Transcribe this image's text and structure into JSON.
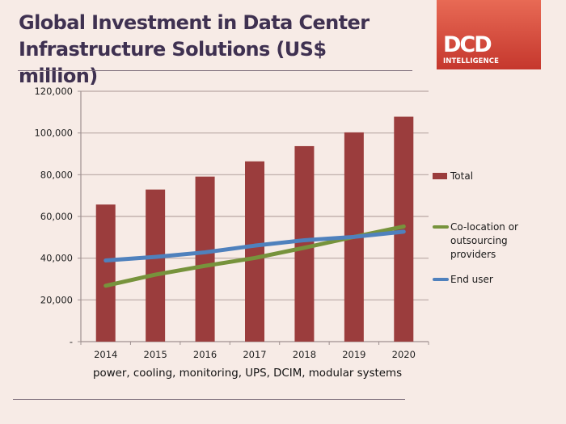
{
  "header": {
    "title_line1": "Global Investment in Data Center",
    "title_line2": "Infrastructure Solutions (US$ million)"
  },
  "logo": {
    "main": "DCD",
    "sub": "INTELLIGENCE",
    "color": "#d9483b"
  },
  "chart_data": {
    "type": "bar",
    "title": "Global Investment in Data Center Infrastructure Solutions (US$ million)",
    "xlabel": "power, cooling, monitoring, UPS, DCIM, modular systems",
    "ylabel": "",
    "categories": [
      "2014",
      "2015",
      "2016",
      "2017",
      "2018",
      "2019",
      "2020"
    ],
    "ylim": [
      0,
      120000
    ],
    "yticks": [
      0,
      20000,
      40000,
      60000,
      80000,
      100000,
      120000
    ],
    "ytick_labels": [
      "-",
      "20,000",
      "40,000",
      "60,000",
      "80,000",
      "100,000",
      "120,000"
    ],
    "grid": true,
    "legend_position": "right",
    "series": [
      {
        "name": "Total",
        "type": "bar",
        "color": "#9b3d3d",
        "values": [
          65700,
          72900,
          79100,
          86400,
          93700,
          100300,
          107800
        ]
      },
      {
        "name": "Co-location or outsourcing providers",
        "legend_lines": [
          "Co-location or",
          "outsourcing",
          "providers"
        ],
        "type": "line",
        "color": "#77933c",
        "values": [
          26800,
          32100,
          36300,
          40100,
          45000,
          50200,
          55200
        ]
      },
      {
        "name": "End user",
        "type": "line",
        "color": "#4f81bd",
        "values": [
          38900,
          40600,
          42800,
          46000,
          48600,
          50200,
          52700
        ]
      }
    ]
  }
}
